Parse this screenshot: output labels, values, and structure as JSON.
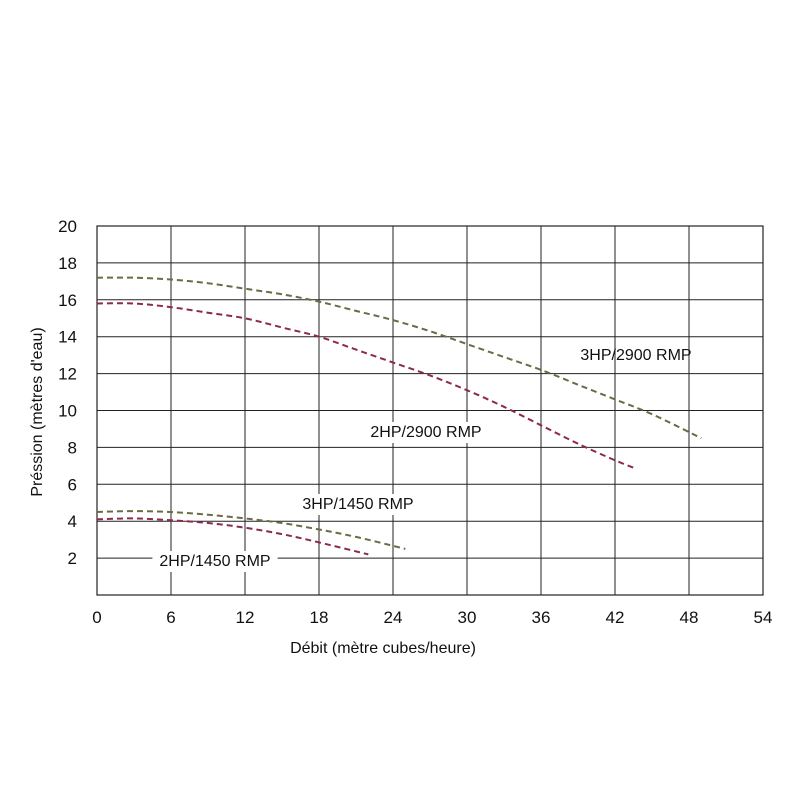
{
  "chart_data": {
    "type": "line",
    "title": "",
    "xlabel": "Débit (mètre cubes/heure)",
    "ylabel": "Préssion (mètres d'eau)",
    "xlim": [
      0,
      54
    ],
    "ylim": [
      0,
      20
    ],
    "x_ticks": [
      0,
      6,
      12,
      18,
      24,
      30,
      36,
      42,
      48,
      54
    ],
    "y_ticks": [
      2,
      4,
      6,
      8,
      10,
      12,
      14,
      16,
      18,
      20
    ],
    "grid": true,
    "series": [
      {
        "name": "3HP/2900 RMP",
        "color": "#6b6b45",
        "x": [
          0,
          3,
          6,
          9,
          12,
          15,
          18,
          21,
          24,
          27,
          30,
          33,
          36,
          39,
          42,
          45,
          49
        ],
        "y": [
          17.2,
          17.2,
          17.1,
          16.9,
          16.6,
          16.3,
          15.9,
          15.4,
          14.9,
          14.3,
          13.6,
          12.9,
          12.2,
          11.4,
          10.6,
          9.8,
          8.5
        ]
      },
      {
        "name": "2HP/2900 RMP",
        "color": "#8b2a4e",
        "x": [
          0,
          3,
          6,
          9,
          12,
          15,
          18,
          21,
          24,
          27,
          30,
          33,
          36,
          39,
          42,
          43.5
        ],
        "y": [
          15.8,
          15.8,
          15.6,
          15.3,
          15.0,
          14.5,
          14.0,
          13.3,
          12.6,
          11.9,
          11.1,
          10.2,
          9.2,
          8.2,
          7.3,
          6.9
        ]
      },
      {
        "name": "3HP/1450 RMP",
        "color": "#6b6b45",
        "x": [
          0,
          3,
          6,
          9,
          12,
          15,
          18,
          21,
          25
        ],
        "y": [
          4.5,
          4.55,
          4.5,
          4.35,
          4.15,
          3.9,
          3.55,
          3.15,
          2.5
        ]
      },
      {
        "name": "2HP/1450 RMP",
        "color": "#8b2a4e",
        "x": [
          0,
          3,
          6,
          9,
          12,
          15,
          18,
          22
        ],
        "y": [
          4.1,
          4.15,
          4.05,
          3.9,
          3.65,
          3.3,
          2.85,
          2.2
        ]
      }
    ]
  }
}
